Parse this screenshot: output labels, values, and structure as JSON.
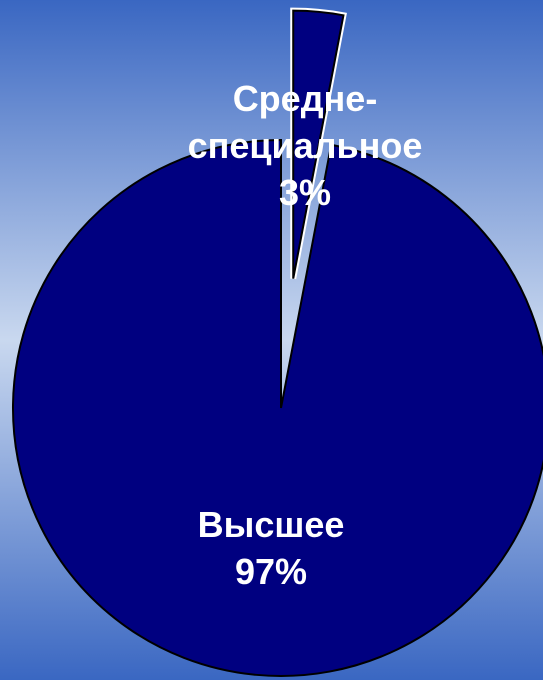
{
  "chart_data": {
    "type": "pie",
    "categories": [
      "Средне-специальное",
      "Высшее"
    ],
    "values": [
      3,
      97
    ],
    "labels": [
      {
        "lines": [
          "Средне-",
          "специальное",
          "3%"
        ]
      },
      {
        "lines": [
          "Высшее",
          "97%"
        ]
      }
    ],
    "exploded": [
      true,
      false
    ],
    "start": "12 o'clock",
    "direction": "clockwise",
    "legend": "none"
  },
  "colors": {
    "slice_fill": "#000080",
    "slice_stroke": "#000000",
    "background_edge": "#3a67c2",
    "background_mid": "#c9d8ef",
    "label": "#ffffff"
  }
}
